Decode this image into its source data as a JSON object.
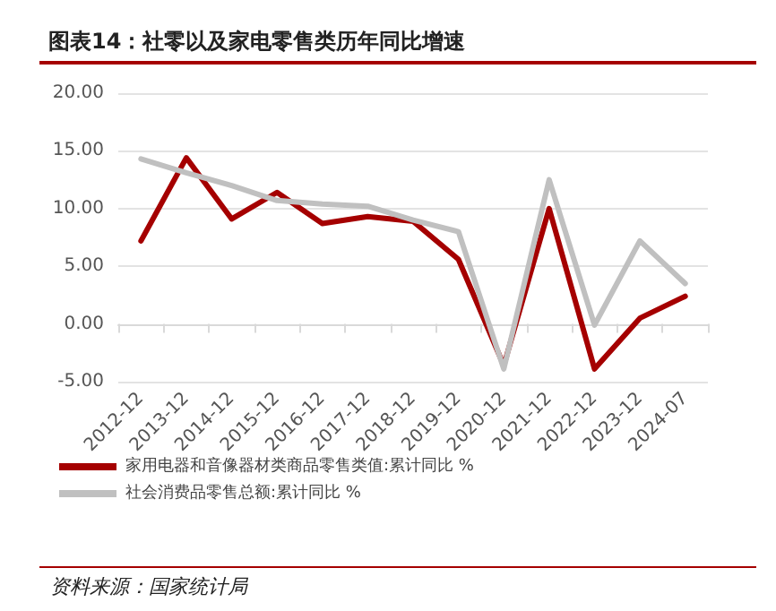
{
  "chart_data": {
    "type": "line",
    "title": "图表14：社零以及家电零售类历年同比增速",
    "categories": [
      "2012-12",
      "2013-12",
      "2014-12",
      "2015-12",
      "2016-12",
      "2017-12",
      "2018-12",
      "2019-12",
      "2020-12",
      "2021-12",
      "2022-12",
      "2023-12",
      "2024-07"
    ],
    "series": [
      {
        "name": "家用电器和音像器材类商品零售类值:累计同比 %",
        "color": "#a50000",
        "values": [
          7.2,
          14.4,
          9.1,
          11.4,
          8.7,
          9.3,
          8.9,
          5.6,
          -3.6,
          10.0,
          -3.9,
          0.5,
          2.4
        ]
      },
      {
        "name": "社会消费品零售总额:累计同比 %",
        "color": "#c0c0c0",
        "values": [
          14.3,
          13.1,
          12.0,
          10.7,
          10.4,
          10.2,
          9.0,
          8.0,
          -3.9,
          12.5,
          -0.1,
          7.2,
          3.5
        ]
      }
    ],
    "ylim": [
      -5,
      20
    ],
    "yticks": [
      {
        "value": -5,
        "label": "-5.00"
      },
      {
        "value": 0,
        "label": "0.00"
      },
      {
        "value": 5,
        "label": "5.00"
      },
      {
        "value": 10,
        "label": "10.00"
      },
      {
        "value": 15,
        "label": "15.00"
      },
      {
        "value": 20,
        "label": "20.00"
      }
    ],
    "grid": "y",
    "legend": "bottom",
    "marker": "none",
    "line_style": "solid",
    "annotations": [
      "资料来源：国家统计局"
    ]
  }
}
